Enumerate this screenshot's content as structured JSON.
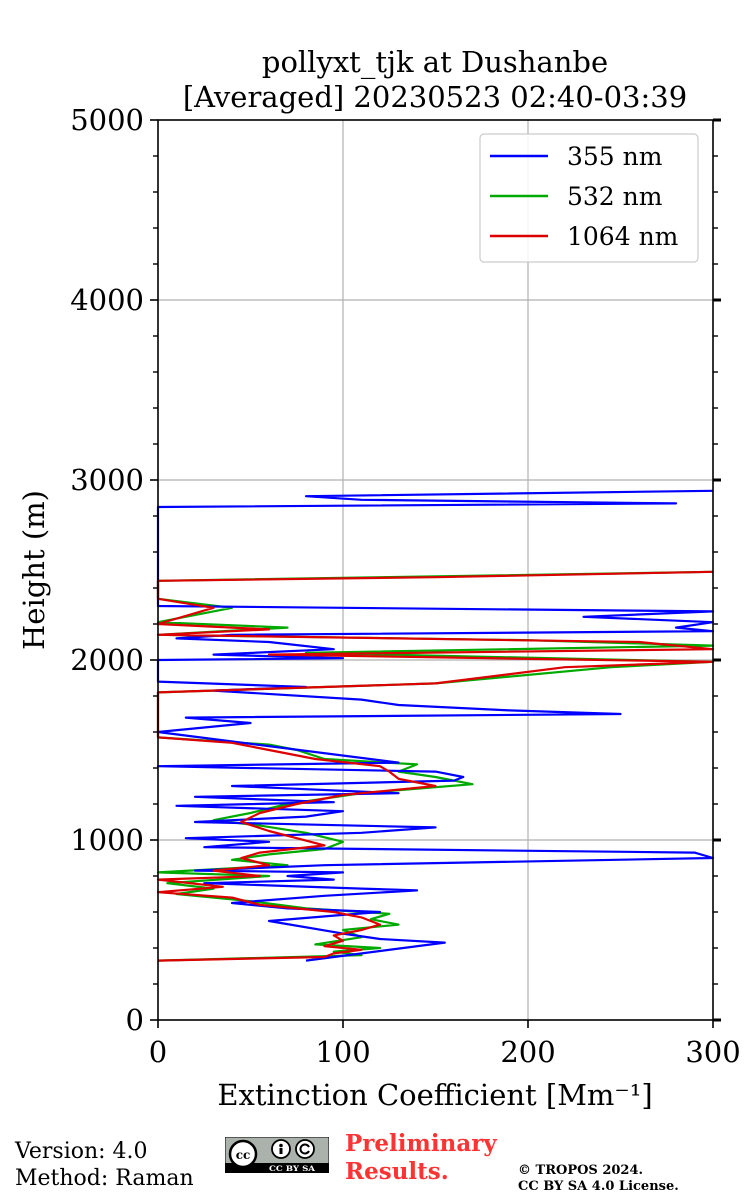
{
  "chart_data": {
    "type": "line",
    "title": [
      "pollyxt_tjk at Dushanbe",
      "[Averaged] 20230523 02:40-03:39"
    ],
    "xlabel": "Extinction Coefficient [Mm⁻¹]",
    "ylabel": "Height (m)",
    "xlim": [
      0,
      300
    ],
    "ylim": [
      0,
      5000
    ],
    "xticks": [
      "0",
      "100",
      "200",
      "300"
    ],
    "yticks": [
      "0",
      "1000",
      "2000",
      "3000",
      "4000",
      "5000"
    ],
    "grid": true,
    "legend_position": "top-right",
    "series": [
      {
        "name": "355 nm",
        "color": "#0000ff",
        "points": [
          [
            80,
            330
          ],
          [
            155,
            430
          ],
          [
            120,
            450
          ],
          [
            100,
            480
          ],
          [
            60,
            550
          ],
          [
            95,
            580
          ],
          [
            120,
            600
          ],
          [
            70,
            620
          ],
          [
            40,
            650
          ],
          [
            90,
            690
          ],
          [
            140,
            720
          ],
          [
            110,
            730
          ],
          [
            25,
            760
          ],
          [
            95,
            780
          ],
          [
            70,
            800
          ],
          [
            100,
            820
          ],
          [
            20,
            830
          ],
          [
            90,
            860
          ],
          [
            300,
            900
          ],
          [
            290,
            930
          ],
          [
            25,
            960
          ],
          [
            60,
            990
          ],
          [
            15,
            1010
          ],
          [
            110,
            1040
          ],
          [
            150,
            1070
          ],
          [
            20,
            1100
          ],
          [
            80,
            1130
          ],
          [
            100,
            1160
          ],
          [
            10,
            1190
          ],
          [
            95,
            1210
          ],
          [
            20,
            1240
          ],
          [
            130,
            1260
          ],
          [
            40,
            1300
          ],
          [
            160,
            1330
          ],
          [
            165,
            1350
          ],
          [
            150,
            1380
          ],
          [
            0,
            1410
          ],
          [
            130,
            1430
          ],
          [
            0,
            1600
          ],
          [
            50,
            1650
          ],
          [
            15,
            1680
          ],
          [
            250,
            1700
          ],
          [
            190,
            1720
          ],
          [
            130,
            1750
          ],
          [
            110,
            1780
          ],
          [
            30,
            1830
          ],
          [
            80,
            1850
          ],
          [
            0,
            1880
          ],
          [
            0,
            2000
          ],
          [
            100,
            2010
          ],
          [
            30,
            2030
          ],
          [
            95,
            2060
          ],
          [
            60,
            2100
          ],
          [
            10,
            2120
          ],
          [
            40,
            2140
          ],
          [
            300,
            2160
          ],
          [
            280,
            2180
          ],
          [
            300,
            2210
          ],
          [
            230,
            2240
          ],
          [
            300,
            2270
          ],
          [
            0,
            2300
          ],
          [
            0,
            2850
          ],
          [
            280,
            2870
          ],
          [
            110,
            2890
          ],
          [
            80,
            2910
          ],
          [
            300,
            2940
          ]
        ]
      },
      {
        "name": "532 nm",
        "color": "#00aa00",
        "points": [
          [
            0,
            330
          ],
          [
            110,
            360
          ],
          [
            95,
            380
          ],
          [
            120,
            400
          ],
          [
            85,
            420
          ],
          [
            110,
            460
          ],
          [
            100,
            500
          ],
          [
            130,
            530
          ],
          [
            115,
            560
          ],
          [
            125,
            590
          ],
          [
            80,
            620
          ],
          [
            50,
            660
          ],
          [
            10,
            700
          ],
          [
            30,
            730
          ],
          [
            5,
            760
          ],
          [
            60,
            800
          ],
          [
            0,
            820
          ],
          [
            70,
            860
          ],
          [
            40,
            890
          ],
          [
            60,
            920
          ],
          [
            90,
            950
          ],
          [
            100,
            990
          ],
          [
            80,
            1040
          ],
          [
            55,
            1080
          ],
          [
            30,
            1110
          ],
          [
            50,
            1150
          ],
          [
            70,
            1200
          ],
          [
            110,
            1260
          ],
          [
            170,
            1310
          ],
          [
            150,
            1350
          ],
          [
            130,
            1380
          ],
          [
            140,
            1420
          ],
          [
            90,
            1450
          ],
          [
            75,
            1500
          ],
          [
            60,
            1530
          ],
          [
            0,
            1570
          ],
          [
            0,
            1820
          ],
          [
            150,
            1870
          ],
          [
            245,
            1960
          ],
          [
            300,
            1990
          ],
          [
            80,
            2040
          ],
          [
            300,
            2080
          ],
          [
            200,
            2110
          ],
          [
            0,
            2140
          ],
          [
            70,
            2180
          ],
          [
            0,
            2210
          ],
          [
            40,
            2290
          ],
          [
            0,
            2340
          ],
          [
            0,
            2440
          ],
          [
            185,
            2470
          ],
          [
            300,
            2490
          ]
        ]
      },
      {
        "name": "1064 nm",
        "color": "#dd0000",
        "points": [
          [
            0,
            330
          ],
          [
            90,
            350
          ],
          [
            95,
            370
          ],
          [
            110,
            390
          ],
          [
            90,
            410
          ],
          [
            100,
            440
          ],
          [
            95,
            470
          ],
          [
            110,
            500
          ],
          [
            120,
            530
          ],
          [
            110,
            570
          ],
          [
            95,
            600
          ],
          [
            55,
            640
          ],
          [
            40,
            680
          ],
          [
            0,
            710
          ],
          [
            35,
            740
          ],
          [
            0,
            780
          ],
          [
            55,
            800
          ],
          [
            30,
            830
          ],
          [
            60,
            860
          ],
          [
            45,
            900
          ],
          [
            55,
            930
          ],
          [
            90,
            970
          ],
          [
            75,
            1010
          ],
          [
            60,
            1050
          ],
          [
            45,
            1100
          ],
          [
            55,
            1150
          ],
          [
            75,
            1200
          ],
          [
            100,
            1250
          ],
          [
            150,
            1300
          ],
          [
            130,
            1340
          ],
          [
            125,
            1380
          ],
          [
            120,
            1410
          ],
          [
            85,
            1450
          ],
          [
            60,
            1500
          ],
          [
            40,
            1540
          ],
          [
            0,
            1570
          ],
          [
            0,
            1820
          ],
          [
            150,
            1870
          ],
          [
            220,
            1960
          ],
          [
            300,
            1990
          ],
          [
            60,
            2030
          ],
          [
            300,
            2060
          ],
          [
            260,
            2100
          ],
          [
            0,
            2140
          ],
          [
            60,
            2170
          ],
          [
            0,
            2200
          ],
          [
            30,
            2290
          ],
          [
            0,
            2340
          ],
          [
            0,
            2440
          ],
          [
            150,
            2460
          ],
          [
            300,
            2490
          ]
        ]
      }
    ]
  },
  "footer": {
    "version": "Version: 4.0",
    "method": "Method: Raman",
    "preliminary": [
      "Preliminary",
      "Results."
    ],
    "copyright": [
      "© TROPOS 2024.",
      "CC BY SA 4.0 License."
    ],
    "license_badge": "CC BY SA"
  }
}
